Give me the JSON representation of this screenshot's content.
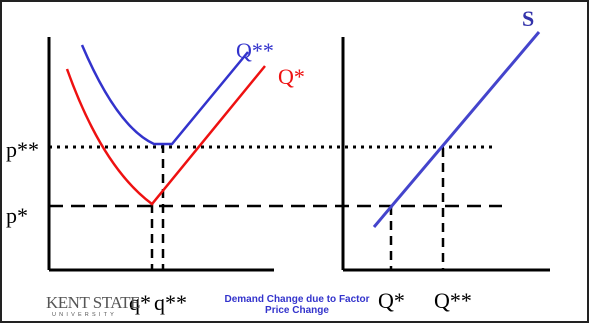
{
  "diagram": {
    "left_panel": {
      "price_labels": {
        "p_high": "p**",
        "p_low": "p*"
      },
      "curve_labels": {
        "upper": "Q**",
        "lower": "Q*"
      },
      "quantity_labels": {
        "q_low": "q*",
        "q_high": "q**"
      }
    },
    "right_panel": {
      "supply_label": "S",
      "quantity_labels": {
        "q_low": "Q*",
        "q_high": "Q**"
      }
    }
  },
  "footer": {
    "logo": {
      "main": "KENT STATE",
      "sub": "UNIVERSITY"
    },
    "caption": {
      "line1": "Demand Change due to Factor",
      "line2": "Price Change"
    }
  },
  "colors": {
    "upper_curve": "#3333cc",
    "lower_curve": "#ee1111",
    "supply_line": "#4444cc",
    "title_blue": "#3333aa",
    "caption": "#3333cc",
    "logo": "#555555"
  }
}
